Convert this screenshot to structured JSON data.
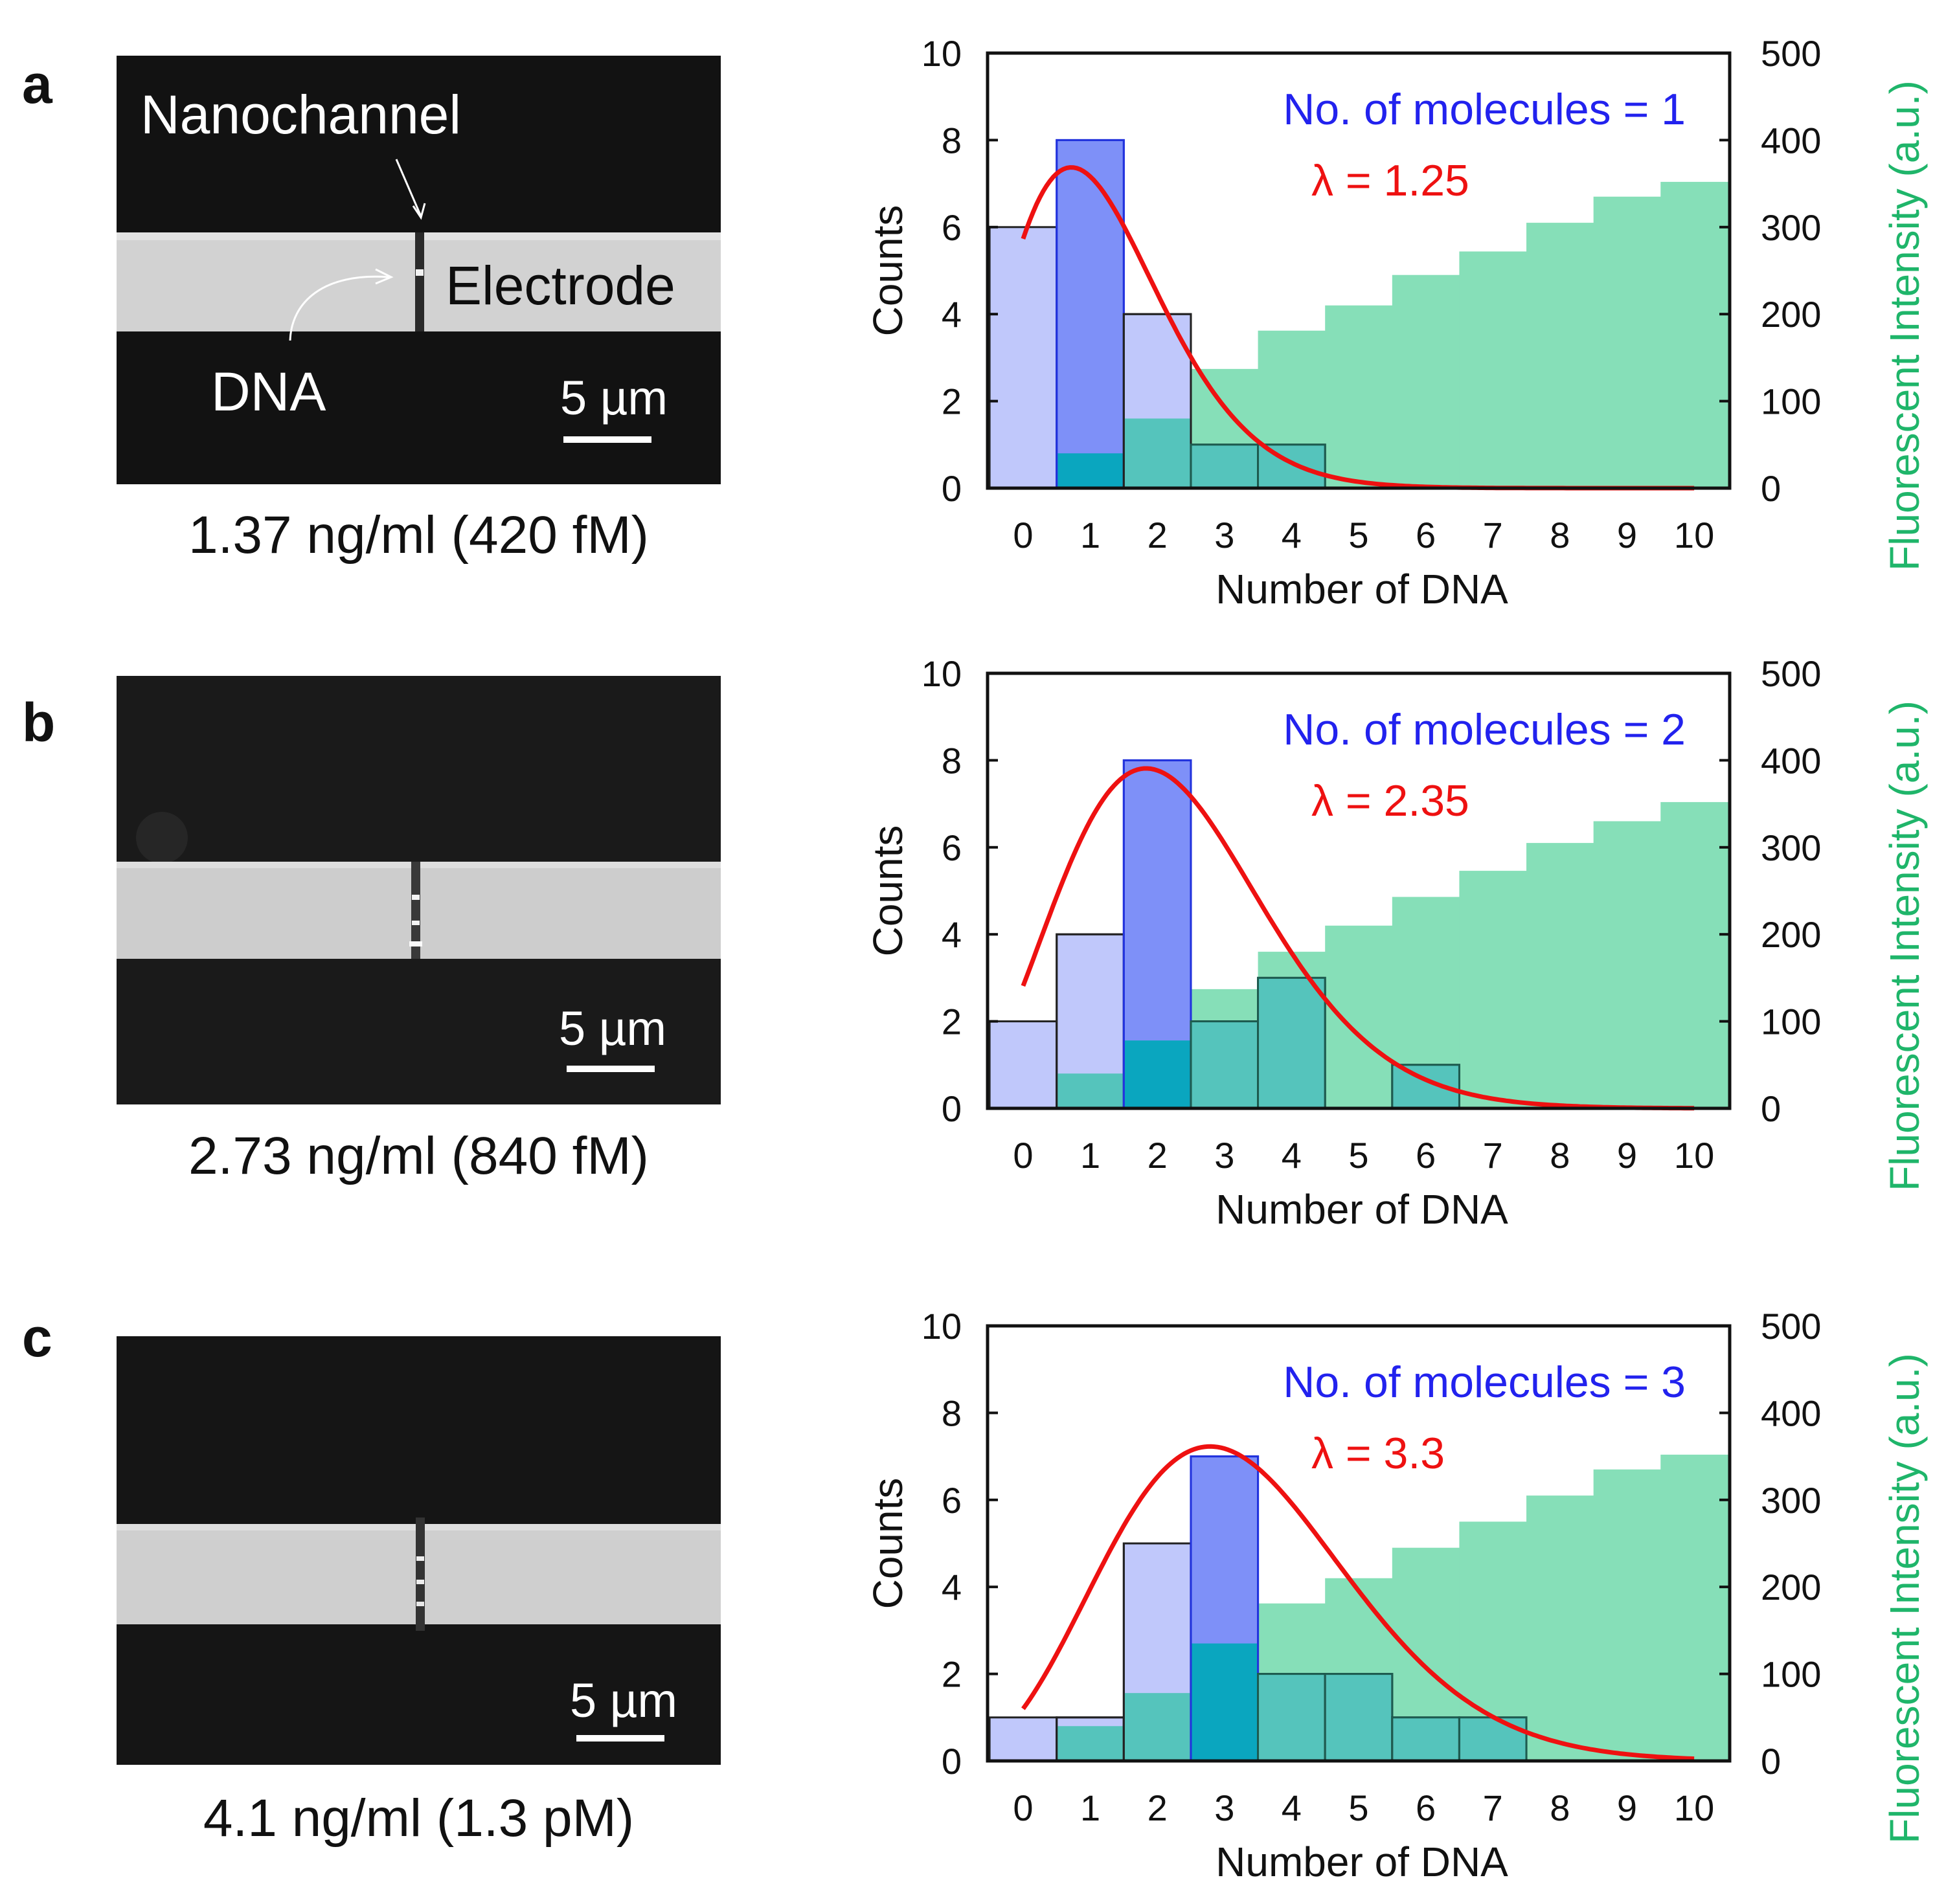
{
  "panels": [
    {
      "letter": "a",
      "caption": "1.37 ng/ml (420 fM)",
      "micrograph": {
        "labels": {
          "nanochannel": "Nanochannel",
          "electrode": "Electrode",
          "dna": "DNA"
        },
        "scale_bar": "5 µm"
      }
    },
    {
      "letter": "b",
      "caption": "2.73 ng/ml (840 fM)",
      "micrograph": {
        "labels": {},
        "scale_bar": "5 µm"
      }
    },
    {
      "letter": "c",
      "caption": "4.1 ng/ml (1.3 pM)",
      "micrograph": {
        "labels": {},
        "scale_bar": "5 µm"
      }
    }
  ],
  "colors": {
    "counts_fill": "#c0c8fb",
    "highlight_fill": "#7e90f8",
    "highlight_stroke": "#2233dd",
    "intensity_fill": "#86dfb8",
    "overlap_fill": "#55c4bc",
    "overlap_deep": "#0aa6bf",
    "poisson_line": "#ee1111",
    "molecules_text": "#2222ee",
    "lambda_text": "#ee1111",
    "right_axis_label": "#1fb56a"
  },
  "chart_data": [
    {
      "type": "bar",
      "xlabel": "Number of DNA",
      "ylabel": "Counts",
      "y2label": "Fluorescent Intensity (a.u.)",
      "categories": [
        "0",
        "1",
        "2",
        "3",
        "4",
        "5",
        "6",
        "7",
        "8",
        "9",
        "10"
      ],
      "ylim": [
        0,
        10
      ],
      "y2lim": [
        0,
        500
      ],
      "yticks": [
        0,
        2,
        4,
        6,
        8,
        10
      ],
      "y2ticks": [
        0,
        100,
        200,
        300,
        400,
        500
      ],
      "annotation_molecules": "No. of molecules = 1",
      "annotation_lambda": "λ = 1.25",
      "series": [
        {
          "name": "Counts",
          "values": [
            6,
            8,
            4,
            1,
            1,
            0,
            0,
            0,
            0,
            0,
            0
          ],
          "highlight_index": 1
        },
        {
          "name": "Fluorescent Intensity",
          "values": [
            0,
            40,
            80,
            137,
            181,
            210,
            245,
            272,
            305,
            335,
            352
          ]
        },
        {
          "name": "Poisson fit",
          "lambda": 1.25,
          "scale": 20
        }
      ]
    },
    {
      "type": "bar",
      "xlabel": "Number of DNA",
      "ylabel": "Counts",
      "y2label": "Fluorescent Intensity (a.u.)",
      "categories": [
        "0",
        "1",
        "2",
        "3",
        "4",
        "5",
        "6",
        "7",
        "8",
        "9",
        "10"
      ],
      "ylim": [
        0,
        10
      ],
      "y2lim": [
        0,
        500
      ],
      "yticks": [
        0,
        2,
        4,
        6,
        8,
        10
      ],
      "y2ticks": [
        0,
        100,
        200,
        300,
        400,
        500
      ],
      "annotation_molecules": "No. of molecules = 2",
      "annotation_lambda": "λ = 2.35",
      "series": [
        {
          "name": "Counts",
          "values": [
            2,
            4,
            8,
            2,
            3,
            0,
            1,
            0,
            0,
            0,
            0
          ],
          "highlight_index": 2
        },
        {
          "name": "Fluorescent Intensity",
          "values": [
            0,
            40,
            78,
            137,
            180,
            210,
            243,
            273,
            305,
            330,
            352
          ]
        },
        {
          "name": "Poisson fit",
          "lambda": 2.35,
          "scale": 29.5
        }
      ]
    },
    {
      "type": "bar",
      "xlabel": "Number of DNA",
      "ylabel": "Counts",
      "y2label": "Fluorescent Intensity (a.u.)",
      "categories": [
        "0",
        "1",
        "2",
        "3",
        "4",
        "5",
        "6",
        "7",
        "8",
        "9",
        "10"
      ],
      "ylim": [
        0,
        10
      ],
      "y2lim": [
        0,
        500
      ],
      "yticks": [
        0,
        2,
        4,
        6,
        8,
        10
      ],
      "y2ticks": [
        0,
        100,
        200,
        300,
        400,
        500
      ],
      "annotation_molecules": "No. of molecules = 3",
      "annotation_lambda": "λ = 3.3",
      "series": [
        {
          "name": "Counts",
          "values": [
            1,
            1,
            5,
            7,
            2,
            2,
            1,
            1,
            0,
            0,
            0
          ],
          "highlight_index": 3
        },
        {
          "name": "Fluorescent Intensity",
          "values": [
            0,
            40,
            78,
            135,
            181,
            210,
            245,
            275,
            305,
            335,
            352
          ]
        },
        {
          "name": "Poisson fit",
          "lambda": 3.3,
          "scale": 32.5
        }
      ]
    }
  ]
}
